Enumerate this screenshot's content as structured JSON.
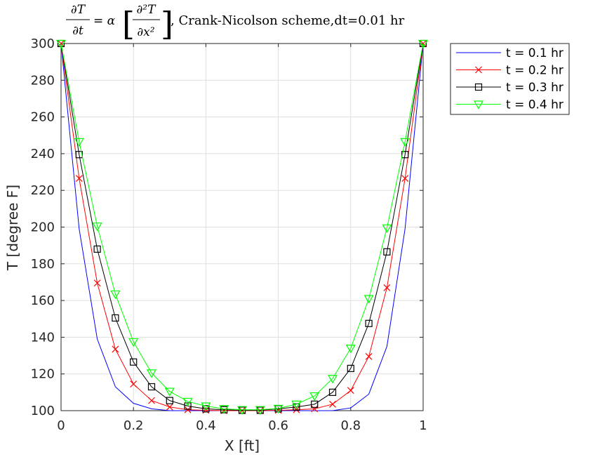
{
  "chart_data": {
    "type": "line",
    "title": "Crank-Nicolson scheme,dt=0.01 hr",
    "title_equation": {
      "lhs_num": "∂T",
      "lhs_den": "∂t",
      "equals_alpha": "= α",
      "rhs_num": "∂²T",
      "rhs_den": "∂x²",
      "suffix": ", Crank-Nicolson scheme,dt=0.01 hr"
    },
    "xlabel": "X [ft]",
    "ylabel": "T [degree F]",
    "xlim": [
      0,
      1
    ],
    "ylim": [
      100,
      300
    ],
    "xticks": [
      0,
      0.2,
      0.4,
      0.6,
      0.8,
      1
    ],
    "xtick_labels": [
      "0",
      "0.2",
      "0.4",
      "0.6",
      "0.8",
      "1"
    ],
    "yticks": [
      100,
      120,
      140,
      160,
      180,
      200,
      220,
      240,
      260,
      280,
      300
    ],
    "yticks_labels": [
      "100",
      "120",
      "140",
      "160",
      "180",
      "200",
      "220",
      "240",
      "260",
      "280",
      "300"
    ],
    "grid": true,
    "legend_position": "outside-top-right",
    "x": [
      0,
      0.05,
      0.1,
      0.15,
      0.2,
      0.25,
      0.3,
      0.35,
      0.4,
      0.45,
      0.5,
      0.55,
      0.6,
      0.65,
      0.7,
      0.75,
      0.8,
      0.85,
      0.9,
      0.95,
      1
    ],
    "series": [
      {
        "name": "t = 0.1 hr",
        "color": "#0000ff",
        "marker": "none",
        "values": [
          300,
          199,
          139,
          113,
          104,
          101,
          100,
          100,
          100,
          100,
          100,
          100,
          100,
          100,
          100,
          100,
          101.5,
          109,
          135,
          199,
          300
        ]
      },
      {
        "name": "t = 0.2 hr",
        "color": "#ff0000",
        "marker": "x",
        "values": [
          300,
          226.5,
          169.5,
          133.5,
          114.5,
          105.5,
          102,
          100.5,
          100.2,
          100,
          100,
          100,
          100.2,
          100.5,
          101,
          103.5,
          111,
          129.5,
          167,
          226.5,
          300
        ]
      },
      {
        "name": "t = 0.3 hr",
        "color": "#000000",
        "marker": "square",
        "values": [
          300,
          239.5,
          188,
          150.5,
          126.5,
          113,
          105.5,
          102.5,
          101,
          100.5,
          100.2,
          100.2,
          101,
          102,
          103.5,
          110,
          123,
          147.5,
          186.5,
          239.5,
          300
        ]
      },
      {
        "name": "t = 0.4 hr",
        "color": "#00ff00",
        "marker": "triangle-down",
        "values": [
          300,
          246.5,
          200.5,
          163.5,
          137.5,
          120.5,
          110.5,
          105,
          102.5,
          101,
          100.5,
          100.5,
          101.2,
          103.5,
          108,
          117.5,
          134,
          161,
          199.5,
          246.5,
          300
        ]
      }
    ]
  }
}
